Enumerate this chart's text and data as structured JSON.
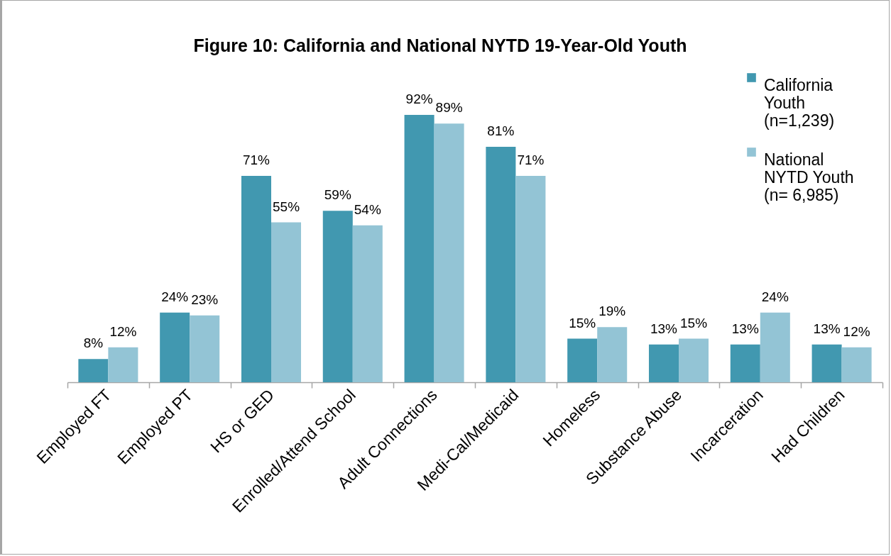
{
  "chart_data": {
    "type": "bar",
    "title": "Figure 10: California and National NYTD 19-Year-Old Youth",
    "categories": [
      "Employed FT",
      "Employed PT",
      "HS or GED",
      "Enrolled/Attend School",
      "Adult Connections",
      "Medi-Cal/Medicaid",
      "Homeless",
      "Substance Abuse",
      "Incarceration",
      "Had Children"
    ],
    "series": [
      {
        "name": "California Youth (n=1,239)",
        "color": "#4198b0",
        "values": [
          8,
          24,
          71,
          59,
          92,
          81,
          15,
          13,
          13,
          13
        ],
        "value_labels": [
          "8%",
          "24%",
          "71%",
          "59%",
          "92%",
          "81%",
          "15%",
          "13%",
          "13%",
          "13%"
        ]
      },
      {
        "name": "National NYTD Youth (n= 6,985)",
        "color": "#93c4d5",
        "values": [
          12,
          23,
          55,
          54,
          89,
          71,
          19,
          15,
          24,
          12
        ],
        "value_labels": [
          "12%",
          "23%",
          "55%",
          "54%",
          "89%",
          "71%",
          "19%",
          "15%",
          "24%",
          "12%"
        ]
      }
    ],
    "legend": "top right",
    "grid": false
  }
}
